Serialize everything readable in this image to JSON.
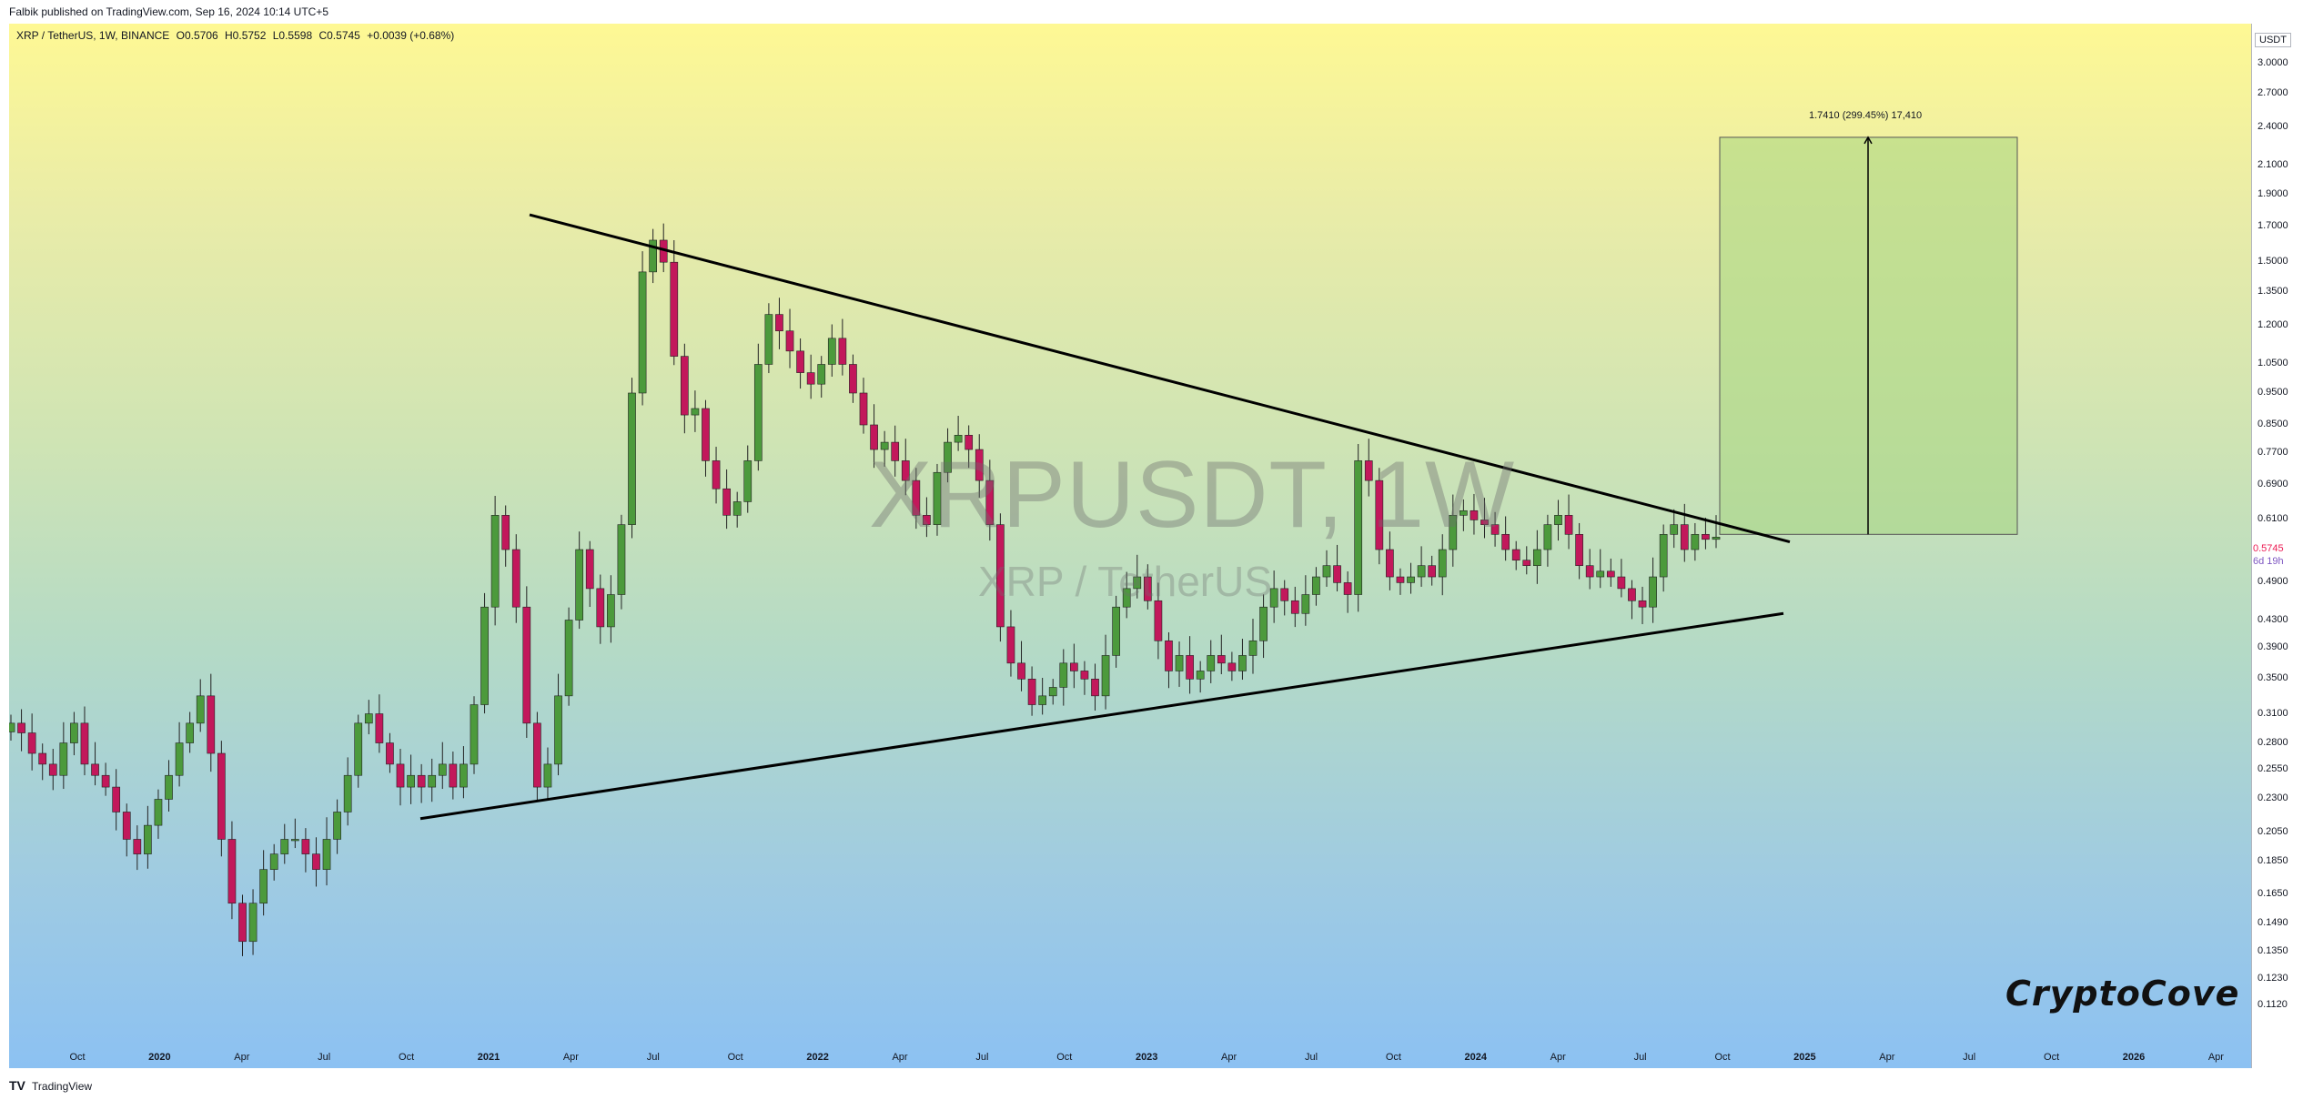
{
  "header": {
    "published_text": "Falbik published on TradingView.com, Sep 16, 2024 10:14 UTC+5"
  },
  "legend": {
    "pair": "XRP / TetherUS, 1W, BINANCE",
    "open": "O0.5706",
    "high": "H0.5752",
    "low": "L0.5598",
    "close": "C0.5745",
    "change": "+0.0039 (+0.68%)"
  },
  "watermark": {
    "symbol": "XRPUSDT, 1W",
    "name": "XRP / TetherUS"
  },
  "price_axis": {
    "unit": "USDT",
    "ticks": [
      "3.0000",
      "2.7000",
      "2.4000",
      "2.1000",
      "1.9000",
      "1.7000",
      "1.5000",
      "1.3500",
      "1.2000",
      "1.0500",
      "0.9500",
      "0.8500",
      "0.7700",
      "0.6900",
      "0.6100",
      "0.4900",
      "0.4300",
      "0.3900",
      "0.3500",
      "0.3100",
      "0.2800",
      "0.2550",
      "0.2300",
      "0.2050",
      "0.1850",
      "0.1650",
      "0.1490",
      "0.1350",
      "0.1230",
      "0.1120"
    ],
    "last_price": "0.5745",
    "countdown": "6d 19h"
  },
  "time_axis": {
    "ticks": [
      {
        "label": "Oct",
        "year": false
      },
      {
        "label": "2020",
        "year": true
      },
      {
        "label": "Apr",
        "year": false
      },
      {
        "label": "Jul",
        "year": false
      },
      {
        "label": "Oct",
        "year": false
      },
      {
        "label": "2021",
        "year": true
      },
      {
        "label": "Apr",
        "year": false
      },
      {
        "label": "Jul",
        "year": false
      },
      {
        "label": "Oct",
        "year": false
      },
      {
        "label": "2022",
        "year": true
      },
      {
        "label": "Apr",
        "year": false
      },
      {
        "label": "Jul",
        "year": false
      },
      {
        "label": "Oct",
        "year": false
      },
      {
        "label": "2023",
        "year": true
      },
      {
        "label": "Apr",
        "year": false
      },
      {
        "label": "Jul",
        "year": false
      },
      {
        "label": "Oct",
        "year": false
      },
      {
        "label": "2024",
        "year": true
      },
      {
        "label": "Apr",
        "year": false
      },
      {
        "label": "Jul",
        "year": false
      },
      {
        "label": "Oct",
        "year": false
      },
      {
        "label": "2025",
        "year": true
      },
      {
        "label": "Apr",
        "year": false
      },
      {
        "label": "Jul",
        "year": false
      },
      {
        "label": "Oct",
        "year": false
      },
      {
        "label": "2026",
        "year": true
      },
      {
        "label": "Apr",
        "year": false
      }
    ]
  },
  "target": {
    "label": "1.7410 (299.45%) 17,410"
  },
  "brand": "CryptoCove",
  "footer": {
    "logo": "TV",
    "text": "TradingView"
  },
  "colors": {
    "bull": "#26a69a",
    "bear": "#ef5350",
    "bull_candle": "#4c9a3c",
    "bear_candle": "#c2185b",
    "target_box": "#a5d67f",
    "trendline": "#000000"
  },
  "chart_data": {
    "type": "candlestick",
    "title": "XRPUSDT, 1W",
    "scale": "log",
    "ylim": [
      0.11,
      3.1
    ],
    "y_ticks": [
      3.0,
      2.7,
      2.4,
      2.1,
      1.9,
      1.7,
      1.5,
      1.35,
      1.2,
      1.05,
      0.95,
      0.85,
      0.77,
      0.69,
      0.61,
      0.49,
      0.43,
      0.39,
      0.35,
      0.31,
      0.28,
      0.255,
      0.23,
      0.205,
      0.185,
      0.165,
      0.149,
      0.135,
      0.123,
      0.112
    ],
    "x_labels": [
      "Oct",
      "2020",
      "Apr",
      "Jul",
      "Oct",
      "2021",
      "Apr",
      "Jul",
      "Oct",
      "2022",
      "Apr",
      "Jul",
      "Oct",
      "2023",
      "Apr",
      "Jul",
      "Oct",
      "2024",
      "Apr",
      "Jul",
      "Oct",
      "2025",
      "Apr",
      "Jul",
      "Oct",
      "2026",
      "Apr"
    ],
    "ohlc_approx": [
      0.3,
      0.29,
      0.27,
      0.26,
      0.25,
      0.28,
      0.3,
      0.26,
      0.25,
      0.24,
      0.22,
      0.2,
      0.19,
      0.21,
      0.23,
      0.25,
      0.28,
      0.3,
      0.33,
      0.27,
      0.2,
      0.16,
      0.14,
      0.16,
      0.18,
      0.19,
      0.2,
      0.2,
      0.19,
      0.18,
      0.2,
      0.22,
      0.25,
      0.3,
      0.31,
      0.28,
      0.26,
      0.24,
      0.25,
      0.24,
      0.25,
      0.26,
      0.24,
      0.26,
      0.32,
      0.45,
      0.62,
      0.55,
      0.45,
      0.3,
      0.24,
      0.26,
      0.33,
      0.43,
      0.55,
      0.48,
      0.42,
      0.47,
      0.6,
      0.95,
      1.45,
      1.62,
      1.5,
      1.08,
      0.88,
      0.9,
      0.75,
      0.68,
      0.62,
      0.65,
      0.75,
      1.05,
      1.25,
      1.18,
      1.1,
      1.02,
      0.98,
      1.05,
      1.15,
      1.05,
      0.95,
      0.85,
      0.78,
      0.8,
      0.75,
      0.7,
      0.62,
      0.6,
      0.72,
      0.8,
      0.82,
      0.78,
      0.7,
      0.6,
      0.42,
      0.37,
      0.35,
      0.32,
      0.33,
      0.34,
      0.37,
      0.36,
      0.35,
      0.33,
      0.38,
      0.45,
      0.48,
      0.5,
      0.46,
      0.4,
      0.36,
      0.38,
      0.35,
      0.36,
      0.38,
      0.37,
      0.36,
      0.38,
      0.4,
      0.45,
      0.48,
      0.46,
      0.44,
      0.47,
      0.5,
      0.52,
      0.49,
      0.47,
      0.75,
      0.7,
      0.55,
      0.5,
      0.49,
      0.5,
      0.52,
      0.5,
      0.55,
      0.62,
      0.63,
      0.61,
      0.6,
      0.58,
      0.55,
      0.53,
      0.52,
      0.55,
      0.6,
      0.62,
      0.58,
      0.52,
      0.5,
      0.51,
      0.5,
      0.48,
      0.46,
      0.45,
      0.5,
      0.58,
      0.6,
      0.55,
      0.58,
      0.57,
      0.5745
    ],
    "trendlines": [
      {
        "name": "descending resistance",
        "from": {
          "date": "2021-04",
          "price": 1.77
        },
        "to": {
          "date": "2024-11",
          "price": 0.565
        }
      },
      {
        "name": "ascending support",
        "from": {
          "date": "2020-09",
          "price": 0.215
        },
        "to": {
          "date": "2024-11",
          "price": 0.44
        }
      }
    ],
    "projection": {
      "base_price": 0.58,
      "target_price": 2.32,
      "change": "1.7410 (299.45%) 17,410"
    }
  }
}
